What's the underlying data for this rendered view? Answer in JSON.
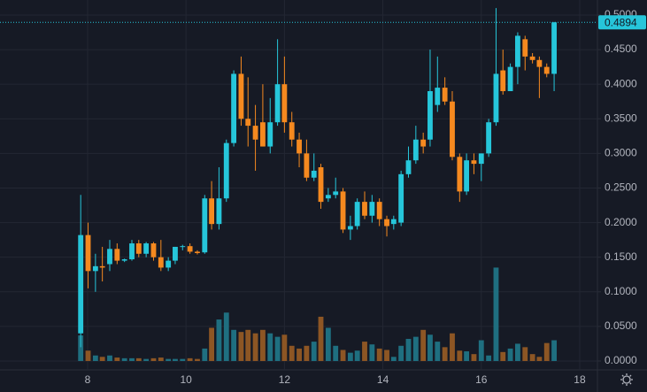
{
  "chart_data": {
    "type": "candlestick",
    "x": [
      7.86,
      8.01,
      8.16,
      8.3,
      8.45,
      8.6,
      8.75,
      8.9,
      9.04,
      9.19,
      9.34,
      9.49,
      9.64,
      9.78,
      9.93,
      10.08,
      10.23,
      10.38,
      10.52,
      10.67,
      10.82,
      10.97,
      11.12,
      11.26,
      11.41,
      11.56,
      11.71,
      11.86,
      12.0,
      12.15,
      12.3,
      12.45,
      12.6,
      12.74,
      12.89,
      13.04,
      13.19,
      13.34,
      13.48,
      13.63,
      13.78,
      13.93,
      14.08,
      14.22,
      14.37,
      14.52,
      14.67,
      14.82,
      14.96,
      15.11,
      15.26,
      15.41,
      15.56,
      15.7,
      15.85,
      16.0,
      16.15,
      16.3,
      16.44,
      16.59,
      16.74,
      16.89,
      17.04,
      17.18,
      17.33,
      17.48
    ],
    "open": [
      0.04,
      0.182,
      0.13,
      0.137,
      0.14,
      0.162,
      0.145,
      0.147,
      0.17,
      0.155,
      0.17,
      0.15,
      0.135,
      0.145,
      0.165,
      0.166,
      0.158,
      0.157,
      0.235,
      0.198,
      0.235,
      0.315,
      0.415,
      0.35,
      0.34,
      0.345,
      0.31,
      0.345,
      0.4,
      0.345,
      0.32,
      0.3,
      0.265,
      0.28,
      0.235,
      0.24,
      0.245,
      0.19,
      0.195,
      0.23,
      0.21,
      0.23,
      0.205,
      0.198,
      0.2,
      0.27,
      0.29,
      0.32,
      0.32,
      0.37,
      0.395,
      0.375,
      0.295,
      0.245,
      0.29,
      0.285,
      0.3,
      0.345,
      0.42,
      0.39,
      0.425,
      0.465,
      0.44,
      0.435,
      0.425,
      0.415
    ],
    "high": [
      0.24,
      0.2,
      0.155,
      0.165,
      0.175,
      0.17,
      0.148,
      0.175,
      0.175,
      0.172,
      0.172,
      0.175,
      0.15,
      0.165,
      0.168,
      0.17,
      0.16,
      0.24,
      0.26,
      0.28,
      0.32,
      0.42,
      0.44,
      0.41,
      0.37,
      0.4,
      0.38,
      0.465,
      0.44,
      0.36,
      0.33,
      0.32,
      0.3,
      0.285,
      0.25,
      0.265,
      0.25,
      0.21,
      0.235,
      0.245,
      0.24,
      0.235,
      0.21,
      0.21,
      0.275,
      0.31,
      0.34,
      0.33,
      0.45,
      0.44,
      0.41,
      0.39,
      0.3,
      0.3,
      0.3,
      0.3,
      0.35,
      0.51,
      0.45,
      0.43,
      0.475,
      0.47,
      0.445,
      0.44,
      0.43,
      0.49
    ],
    "low": [
      0.02,
      0.105,
      0.1,
      0.115,
      0.13,
      0.14,
      0.143,
      0.145,
      0.15,
      0.15,
      0.145,
      0.13,
      0.13,
      0.14,
      0.16,
      0.155,
      0.154,
      0.155,
      0.19,
      0.19,
      0.23,
      0.31,
      0.34,
      0.31,
      0.275,
      0.31,
      0.3,
      0.34,
      0.33,
      0.31,
      0.28,
      0.26,
      0.26,
      0.22,
      0.23,
      0.235,
      0.185,
      0.175,
      0.19,
      0.205,
      0.2,
      0.195,
      0.18,
      0.19,
      0.195,
      0.265,
      0.285,
      0.3,
      0.31,
      0.36,
      0.37,
      0.29,
      0.23,
      0.24,
      0.27,
      0.26,
      0.295,
      0.34,
      0.385,
      0.39,
      0.4,
      0.42,
      0.43,
      0.38,
      0.41,
      0.39
    ],
    "close": [
      0.182,
      0.13,
      0.137,
      0.135,
      0.162,
      0.145,
      0.147,
      0.17,
      0.155,
      0.17,
      0.15,
      0.135,
      0.145,
      0.165,
      0.166,
      0.158,
      0.156,
      0.235,
      0.198,
      0.235,
      0.315,
      0.415,
      0.35,
      0.34,
      0.32,
      0.31,
      0.345,
      0.4,
      0.345,
      0.32,
      0.3,
      0.265,
      0.275,
      0.23,
      0.24,
      0.245,
      0.19,
      0.195,
      0.23,
      0.21,
      0.23,
      0.205,
      0.195,
      0.205,
      0.27,
      0.29,
      0.32,
      0.31,
      0.39,
      0.395,
      0.375,
      0.295,
      0.245,
      0.29,
      0.285,
      0.3,
      0.345,
      0.415,
      0.39,
      0.425,
      0.47,
      0.44,
      0.435,
      0.425,
      0.415,
      0.4894
    ],
    "volume": [
      0.037,
      0.015,
      0.008,
      0.006,
      0.008,
      0.005,
      0.004,
      0.004,
      0.004,
      0.003,
      0.004,
      0.005,
      0.003,
      0.003,
      0.003,
      0.004,
      0.003,
      0.018,
      0.048,
      0.06,
      0.07,
      0.045,
      0.042,
      0.045,
      0.04,
      0.045,
      0.04,
      0.035,
      0.038,
      0.022,
      0.018,
      0.022,
      0.028,
      0.064,
      0.048,
      0.022,
      0.016,
      0.012,
      0.015,
      0.028,
      0.024,
      0.018,
      0.016,
      0.006,
      0.022,
      0.032,
      0.035,
      0.045,
      0.038,
      0.028,
      0.02,
      0.04,
      0.015,
      0.014,
      0.01,
      0.03,
      0.008,
      0.135,
      0.013,
      0.018,
      0.025,
      0.02,
      0.01,
      0.006,
      0.026,
      0.03
    ],
    "up_color": "#26c6da",
    "down_color": "#f5891f",
    "up_volume_color": "#1f6f80",
    "down_volume_color": "#8d5624",
    "last_price": 0.4894,
    "xlim": [
      6.22,
      18.36
    ],
    "xticks": [
      8,
      10,
      12,
      14,
      16,
      18
    ],
    "ylim": [
      -0.0128,
      0.5217
    ],
    "yticks": [
      {
        "value": 0,
        "label": "0.0000"
      },
      {
        "value": 0.05,
        "label": "0.0500"
      },
      {
        "value": 0.1,
        "label": "0.1000"
      },
      {
        "value": 0.15,
        "label": "0.1500"
      },
      {
        "value": 0.2,
        "label": "0.2000"
      },
      {
        "value": 0.25,
        "label": "0.2500"
      },
      {
        "value": 0.3,
        "label": "0.3000"
      },
      {
        "value": 0.35,
        "label": "0.3500"
      },
      {
        "value": 0.4,
        "label": "0.4000"
      },
      {
        "value": 0.45,
        "label": "0.4500"
      },
      {
        "value": 0.5,
        "label": "0.5000"
      }
    ],
    "grid": true
  }
}
